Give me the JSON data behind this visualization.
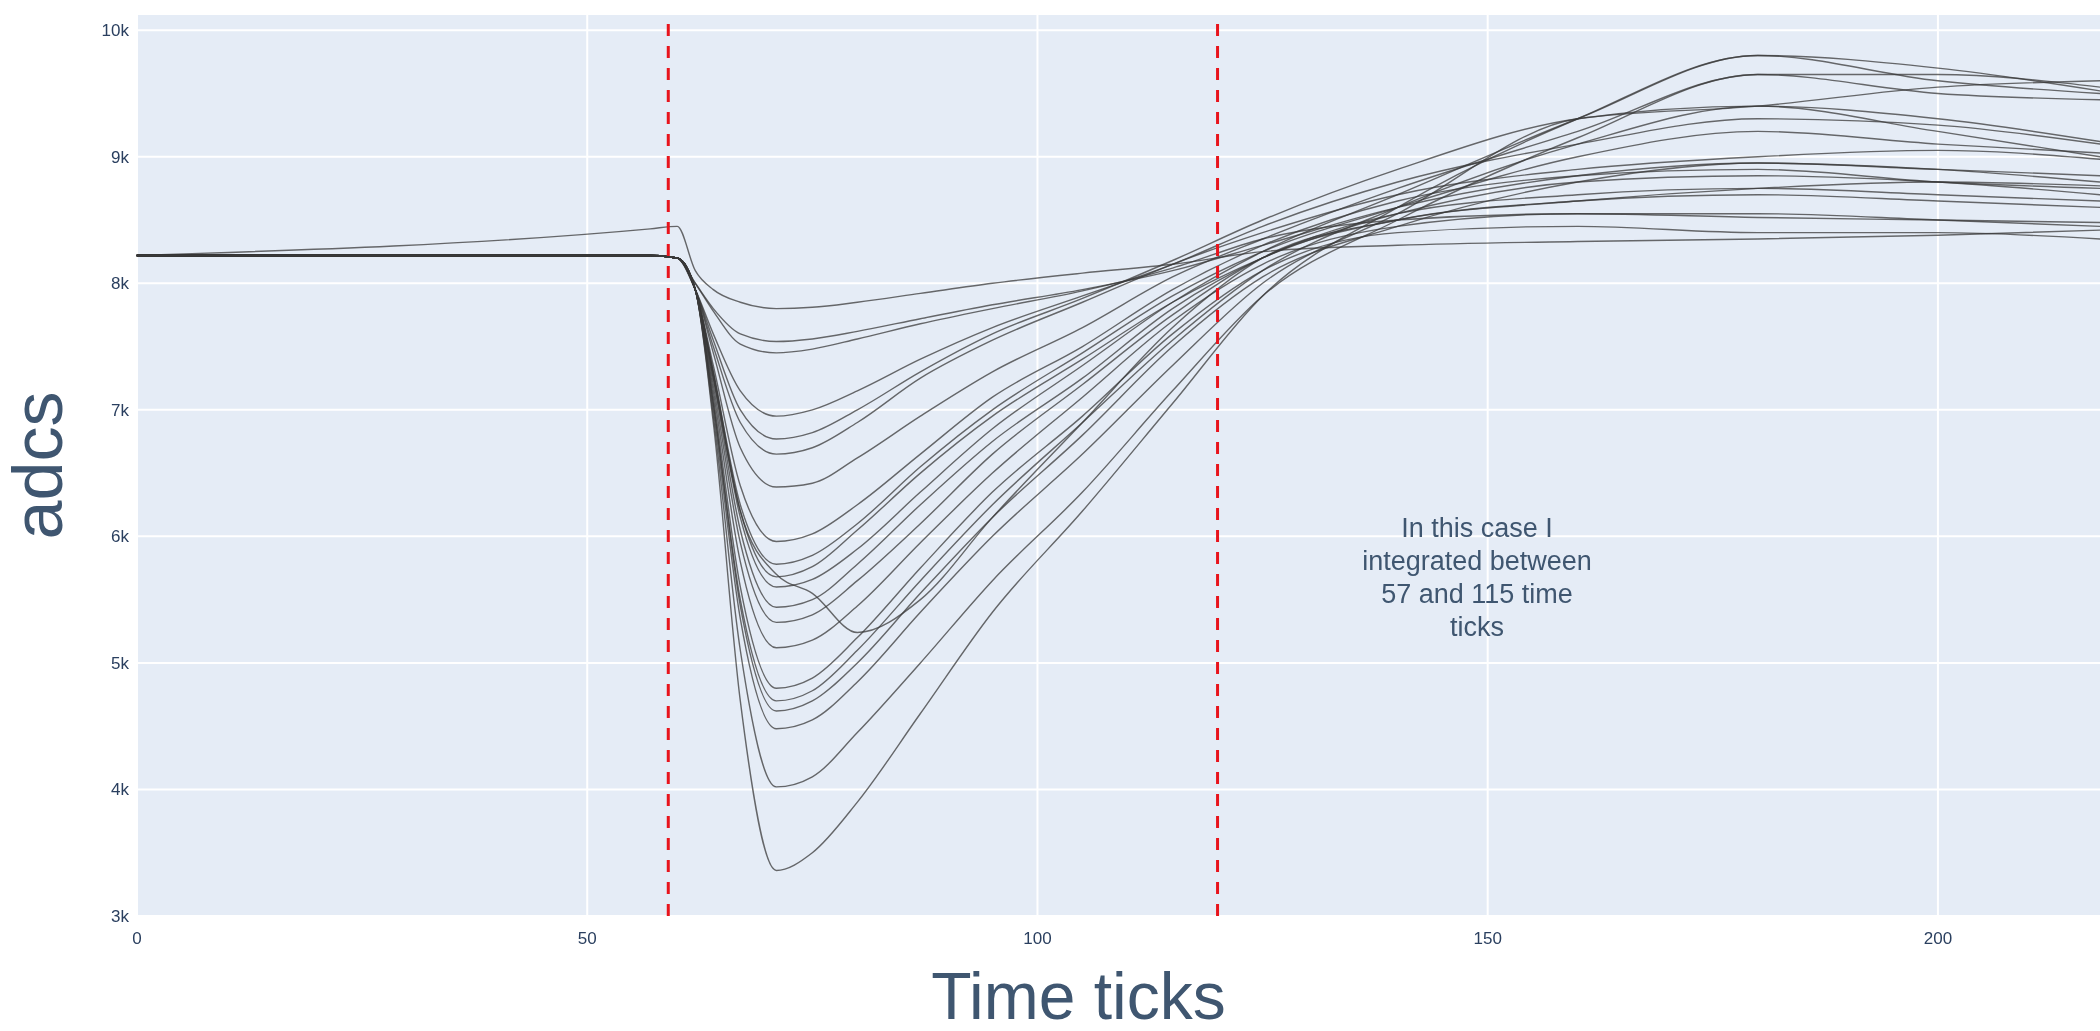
{
  "chart_data": {
    "type": "line",
    "xlabel": "Time ticks",
    "ylabel": "adcs",
    "annotations": [
      "In this case I integrated between 57 and 115 time ticks"
    ],
    "x": [
      0,
      57,
      60,
      62,
      64,
      67,
      71,
      75,
      80,
      87,
      95,
      105,
      115,
      125,
      140,
      160,
      180,
      200,
      218
    ],
    "xlim": [
      0,
      218
    ],
    "xticks": [
      0,
      50,
      100,
      150,
      200
    ],
    "ylim": [
      3000,
      10120
    ],
    "yticks": [
      {
        "value": 3000,
        "label": "3k"
      },
      {
        "value": 4000,
        "label": "4k"
      },
      {
        "value": 5000,
        "label": "5k"
      },
      {
        "value": 6000,
        "label": "6k"
      },
      {
        "value": 7000,
        "label": "7k"
      },
      {
        "value": 8000,
        "label": "8k"
      },
      {
        "value": 9000,
        "label": "9k"
      },
      {
        "value": 10000,
        "label": "10k"
      }
    ],
    "grid": true,
    "marker": "none",
    "line_style": "solid",
    "ref_lines": [
      {
        "axis": "x",
        "value": 59,
        "color": "#e8141c",
        "line_style": "dashed"
      },
      {
        "axis": "x",
        "value": 120,
        "color": "#e8141c",
        "line_style": "dashed"
      }
    ],
    "series": [
      {
        "color": "#3a3a3a",
        "values": [
          8220,
          8430,
          8450,
          8100,
          7950,
          7850,
          7800,
          7810,
          7850,
          7920,
          8000,
          8080,
          8150,
          8250,
          8300,
          8330,
          8350,
          8380,
          8420
        ]
      },
      {
        "color": "#3a3a3a",
        "values": [
          8220,
          8220,
          8200,
          8000,
          7800,
          7600,
          7540,
          7560,
          7620,
          7720,
          7830,
          7950,
          8100,
          8300,
          8600,
          8850,
          8950,
          8900,
          8850
        ]
      },
      {
        "color": "#3a3a3a",
        "values": [
          8220,
          8220,
          8200,
          8000,
          7780,
          7520,
          7450,
          7480,
          7560,
          7680,
          7800,
          7940,
          8120,
          8350,
          8500,
          8550,
          8520,
          8500,
          8480
        ]
      },
      {
        "color": "#3a3a3a",
        "values": [
          8220,
          8220,
          8200,
          7950,
          7600,
          7150,
          6950,
          7000,
          7150,
          7400,
          7650,
          7900,
          8150,
          8450,
          8800,
          9100,
          9300,
          9250,
          9100
        ]
      },
      {
        "color": "#3a3a3a",
        "values": [
          8220,
          8220,
          8200,
          7950,
          7550,
          7000,
          6770,
          6820,
          7000,
          7300,
          7600,
          7880,
          8180,
          8500,
          8900,
          9300,
          9400,
          9200,
          9000
        ]
      },
      {
        "color": "#3a3a3a",
        "values": [
          8220,
          8220,
          8200,
          7950,
          7500,
          6900,
          6650,
          6700,
          6900,
          7250,
          7550,
          7850,
          8150,
          8400,
          8700,
          8900,
          9000,
          9050,
          8980
        ]
      },
      {
        "color": "#3a3a3a",
        "values": [
          8220,
          8220,
          8200,
          7950,
          7450,
          6700,
          6390,
          6420,
          6620,
          6950,
          7300,
          7650,
          8050,
          8350,
          8750,
          9200,
          9650,
          9500,
          9450
        ]
      },
      {
        "color": "#3a3a3a",
        "values": [
          8220,
          8220,
          8200,
          7950,
          7350,
          6400,
          5960,
          6020,
          6250,
          6650,
          7100,
          7500,
          7950,
          8300,
          8650,
          8850,
          8900,
          8800,
          8750
        ]
      },
      {
        "color": "#3a3a3a",
        "values": [
          8220,
          8220,
          8200,
          7950,
          7300,
          6250,
          5780,
          5850,
          6100,
          6550,
          7000,
          7450,
          7900,
          8250,
          8600,
          9000,
          9200,
          9100,
          9030
        ]
      },
      {
        "color": "#3a3a3a",
        "values": [
          8220,
          8220,
          8200,
          7950,
          7300,
          6200,
          5680,
          5760,
          6050,
          6500,
          6950,
          7400,
          7850,
          8200,
          8550,
          8800,
          8850,
          8800,
          8700
        ]
      },
      {
        "color": "#3a3a3a",
        "values": [
          8220,
          8220,
          8200,
          7950,
          7280,
          6150,
          5600,
          5660,
          5900,
          6350,
          6850,
          7350,
          7850,
          8250,
          8700,
          9300,
          9800,
          9600,
          9500
        ]
      },
      {
        "color": "#3a3a3a",
        "values": [
          8220,
          8220,
          8200,
          7950,
          7250,
          6050,
          5440,
          5500,
          5780,
          6250,
          6750,
          7250,
          7800,
          8200,
          8550,
          8700,
          8750,
          8700,
          8650
        ]
      },
      {
        "color": "#3a3a3a",
        "values": [
          8220,
          8220,
          8200,
          7950,
          7250,
          6200,
          5700,
          5550,
          5240,
          5500,
          6150,
          6900,
          7650,
          8200,
          8500,
          8650,
          8750,
          8800,
          8770
        ]
      },
      {
        "color": "#3a3a3a",
        "values": [
          8220,
          8220,
          8200,
          7950,
          7200,
          5950,
          5320,
          5380,
          5650,
          6100,
          6650,
          7200,
          7750,
          8200,
          8500,
          8650,
          8700,
          8650,
          8600
        ]
      },
      {
        "color": "#3a3a3a",
        "values": [
          8220,
          8220,
          8200,
          7950,
          7150,
          5800,
          5120,
          5180,
          5450,
          5950,
          6500,
          7100,
          7700,
          8150,
          8450,
          8550,
          8550,
          8500,
          8450
        ]
      },
      {
        "color": "#3a3a3a",
        "values": [
          8220,
          8220,
          8200,
          7950,
          7100,
          5600,
          4800,
          4880,
          5200,
          5750,
          6350,
          6950,
          7600,
          8100,
          8400,
          8450,
          8400,
          8400,
          8350
        ]
      },
      {
        "color": "#3a3a3a",
        "values": [
          8220,
          8220,
          8200,
          7950,
          7050,
          5500,
          4700,
          4780,
          5100,
          5650,
          6250,
          6900,
          7550,
          8100,
          8600,
          9100,
          9400,
          9300,
          9120
        ]
      },
      {
        "color": "#3a3a3a",
        "values": [
          8220,
          8220,
          8200,
          7950,
          7050,
          5450,
          4620,
          4700,
          5000,
          5550,
          6150,
          6800,
          7500,
          8050,
          8450,
          8800,
          8950,
          8900,
          8800
        ]
      },
      {
        "color": "#3a3a3a",
        "values": [
          8220,
          8220,
          8200,
          7950,
          7000,
          5350,
          4480,
          4550,
          4850,
          5400,
          6000,
          6650,
          7350,
          8000,
          8550,
          9300,
          9400,
          9550,
          9600
        ]
      },
      {
        "color": "#3a3a3a",
        "values": [
          8220,
          8220,
          8200,
          7950,
          6950,
          5100,
          4020,
          4100,
          4450,
          5000,
          5650,
          6350,
          7150,
          7900,
          8500,
          9150,
          9650,
          9650,
          9550
        ]
      },
      {
        "color": "#3a3a3a",
        "values": [
          8220,
          8220,
          8200,
          7950,
          6900,
          4700,
          3360,
          3500,
          3900,
          4600,
          5400,
          6200,
          7050,
          7900,
          8600,
          9300,
          9800,
          9700,
          9520
        ]
      }
    ]
  }
}
